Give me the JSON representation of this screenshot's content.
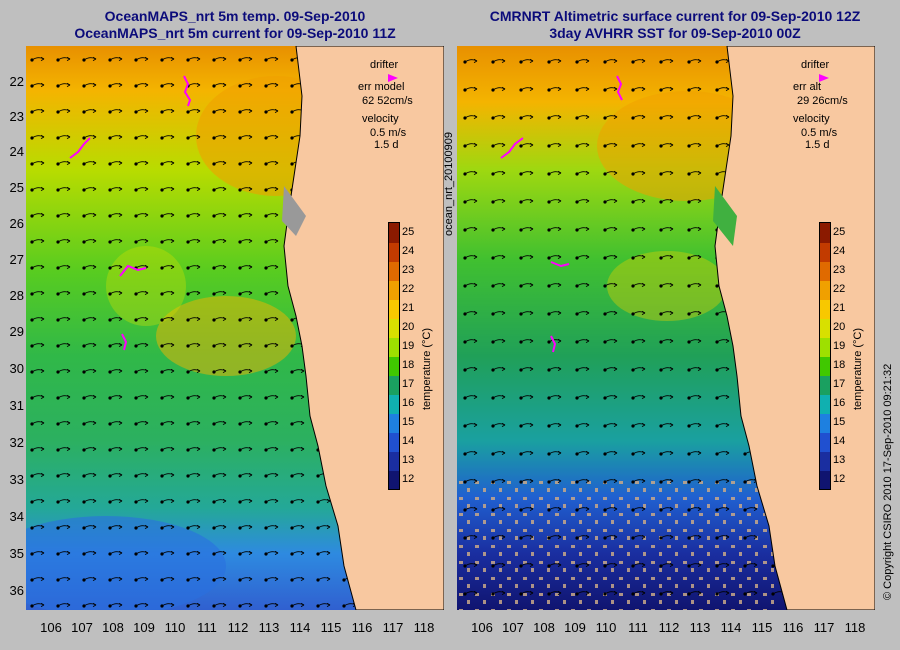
{
  "left_panel": {
    "title_line1": "OceanMAPS_nrt 5m temp. 09-Sep-2010",
    "title_line2": "OceanMAPS_nrt 5m current for 09-Sep-2010 11Z",
    "legend": {
      "drifter": "drifter",
      "err_label": "err model",
      "err_value": "62 52cm/s",
      "velocity": "velocity",
      "scale": "0.5 m/s",
      "duration": "1.5 d"
    },
    "side_label": "ocean_nrt_20100909"
  },
  "right_panel": {
    "title_line1": "CMRNRT Altimetric surface current for 09-Sep-2010 12Z",
    "title_line2": "3day AVHRR SST for 09-Sep-2010 00Z",
    "legend": {
      "drifter": "drifter",
      "err_label": "err alt",
      "err_value": "29 26cm/s",
      "velocity": "velocity",
      "scale": "0.5 m/s",
      "duration": "1.5 d"
    },
    "side_label": "© Copyright CSIRO 2010   17-Sep-2010 09:21:32"
  },
  "axes": {
    "x_ticks": [
      "106",
      "107",
      "108",
      "109",
      "110",
      "111",
      "112",
      "113",
      "114",
      "115",
      "116",
      "117",
      "118"
    ],
    "y_ticks": [
      "22",
      "23",
      "24",
      "25",
      "26",
      "27",
      "28",
      "29",
      "30",
      "31",
      "32",
      "33",
      "34",
      "35",
      "36"
    ]
  },
  "colorbar": {
    "title": "temperature (°C)",
    "ticks": [
      "25",
      "24",
      "23",
      "22",
      "21",
      "20",
      "19",
      "18",
      "17",
      "16",
      "15",
      "14",
      "13",
      "12"
    ],
    "colors": [
      "#8b1a00",
      "#c23b00",
      "#e06a00",
      "#f0a000",
      "#f8c800",
      "#d8e000",
      "#9ee000",
      "#40c800",
      "#1aa060",
      "#10b0b0",
      "#1e80e0",
      "#2050d0",
      "#1a2ea0",
      "#101470"
    ]
  },
  "colors": {
    "land": "#f8c8a0",
    "drifter": "#ff00ff",
    "background": "#bfbfbf",
    "title": "#0b0b7a"
  }
}
